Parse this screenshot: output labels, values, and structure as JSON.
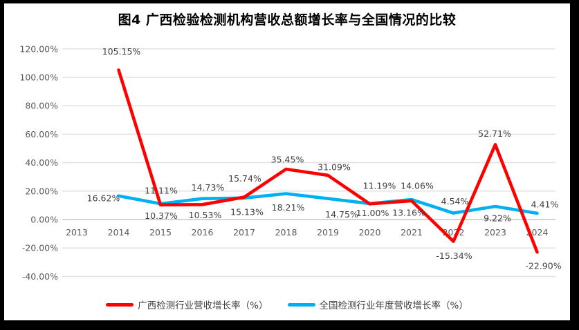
{
  "frame": {
    "title": "图4 广西检验检测机构营收总额增长率与全国情况的比较"
  },
  "chart_data": {
    "type": "line",
    "title": "图4 广西检验检测机构营收总额增长率与全国情况的比较",
    "x_labels": [
      "2013",
      "2014",
      "2015",
      "2016",
      "2017",
      "2018",
      "2019",
      "2020",
      "2021",
      "2022",
      "2023",
      "2024"
    ],
    "xlabel": "",
    "ylabel": "",
    "ylim": [
      -40,
      120
    ],
    "grid": true,
    "legend_position": "bottom",
    "y_axis": {
      "min": -40,
      "max": 120,
      "step": 20,
      "ticks": [
        {
          "v": 120,
          "label": "120.00%"
        },
        {
          "v": 100,
          "label": "100.00%"
        },
        {
          "v": 80,
          "label": "80.00%"
        },
        {
          "v": 60,
          "label": "60.00%"
        },
        {
          "v": 40,
          "label": "40.00%"
        },
        {
          "v": 20,
          "label": "20.00%"
        },
        {
          "v": 0,
          "label": "0.00%"
        },
        {
          "v": -20,
          "label": "-20.00%"
        },
        {
          "v": -40,
          "label": "-40.00%"
        }
      ]
    },
    "series": [
      {
        "name": "广西检测行业营收增长率（%）",
        "color": "#FF0000",
        "points": [
          {
            "year": 2014,
            "value": 105.15,
            "label": "105.15%",
            "dx": 4,
            "dy": -27
          },
          {
            "year": 2015,
            "value": 10.37,
            "label": "10.37%",
            "dx": 1,
            "dy": 16
          },
          {
            "year": 2016,
            "value": 10.53,
            "label": "10.53%",
            "dx": 4,
            "dy": 15
          },
          {
            "year": 2017,
            "value": 15.74,
            "label": "15.74%",
            "dx": 1,
            "dy": -27
          },
          {
            "year": 2018,
            "value": 35.45,
            "label": "35.45%",
            "dx": 2,
            "dy": -14
          },
          {
            "year": 2019,
            "value": 31.09,
            "label": "31.09%",
            "dx": 9,
            "dy": -12
          },
          {
            "year": 2020,
            "value": 11.0,
            "label": "11.00%",
            "dx": 4,
            "dy": 13
          },
          {
            "year": 2021,
            "value": 13.16,
            "label": "13.16%",
            "dx": -4,
            "dy": 17
          },
          {
            "year": 2022,
            "value": -15.34,
            "label": "-15.34%",
            "dx": 1,
            "dy": 21
          },
          {
            "year": 2023,
            "value": 52.71,
            "label": "52.71%",
            "dx": -1,
            "dy": -16
          },
          {
            "year": 2024,
            "value": -22.9,
            "label": "-22.90%",
            "dx": 9,
            "dy": 20
          }
        ]
      },
      {
        "name": "全国检测行业年度营收增长率（%）",
        "color": "#00B0F0",
        "points": [
          {
            "year": 2014,
            "value": 16.62,
            "label": "16.62%",
            "dx": -22,
            "dy": 3
          },
          {
            "year": 2015,
            "value": 11.11,
            "label": "11.11%",
            "dx": 1,
            "dy": -19
          },
          {
            "year": 2016,
            "value": 14.73,
            "label": "14.73%",
            "dx": 8,
            "dy": -16
          },
          {
            "year": 2017,
            "value": 15.13,
            "label": "15.13%",
            "dx": 4,
            "dy": 20
          },
          {
            "year": 2018,
            "value": 18.21,
            "label": "18.21%",
            "dx": 3,
            "dy": 20
          },
          {
            "year": 2019,
            "value": 14.75,
            "label": "14.75%",
            "dx": 20,
            "dy": 23
          },
          {
            "year": 2020,
            "value": 11.19,
            "label": "11.19%",
            "dx": 14,
            "dy": -26
          },
          {
            "year": 2021,
            "value": 14.06,
            "label": "14.06%",
            "dx": 8,
            "dy": -20
          },
          {
            "year": 2022,
            "value": 4.54,
            "label": "4.54%",
            "dx": 2,
            "dy": -17
          },
          {
            "year": 2023,
            "value": 9.22,
            "label": "9.22%",
            "dx": 3,
            "dy": 17
          },
          {
            "year": 2024,
            "value": 4.41,
            "label": "4.41%",
            "dx": 11,
            "dy": -13
          }
        ]
      }
    ],
    "style": {
      "grid_color": "#e3e3e3",
      "zero_axis_color": "#c6c6c6",
      "axis_text_color": "#595959",
      "data_label_color": "#3f3f3f",
      "background": "#ffffff",
      "outer_frame": "#000000",
      "line_width": 4.6
    }
  }
}
